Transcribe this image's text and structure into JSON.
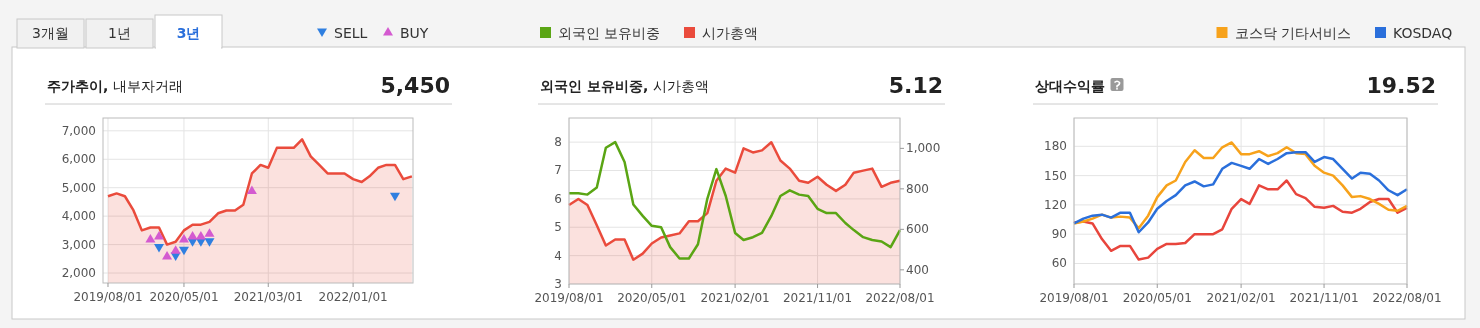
{
  "chart_data": [
    {
      "type": "area",
      "title": "주가추이, 내부자거래",
      "annotations": [
        "3개월",
        "1년",
        "3년",
        "5,450"
      ],
      "x": [
        "2019-08",
        "2019-09",
        "2019-10",
        "2019-11",
        "2019-12",
        "2020-01",
        "2020-02",
        "2020-03",
        "2020-04",
        "2020-05",
        "2020-06",
        "2020-07",
        "2020-08",
        "2020-09",
        "2020-10",
        "2020-11",
        "2020-12",
        "2021-01",
        "2021-02",
        "2021-03",
        "2021-04",
        "2021-05",
        "2021-06",
        "2021-07",
        "2021-08",
        "2021-09",
        "2021-10",
        "2021-11",
        "2021-12",
        "2022-01",
        "2022-02",
        "2022-03",
        "2022-04",
        "2022-05",
        "2022-06",
        "2022-07",
        "2022-08"
      ],
      "series": [
        {
          "color": "#ea4b3c",
          "values": [
            4700,
            4800,
            4700,
            4200,
            3500,
            3600,
            3600,
            3000,
            3100,
            3500,
            3700,
            3700,
            3800,
            4100,
            4200,
            4200,
            4400,
            5500,
            5800,
            5700,
            6400,
            6400,
            6400,
            6700,
            6100,
            5800,
            5500,
            5500,
            5500,
            5300,
            5200,
            5400,
            5700,
            5800,
            5800,
            5300,
            5400
          ]
        },
        {
          "type": "scatter",
          "name": "SELL",
          "color": "#2f7fe0",
          "marker": "triangle-down",
          "x": [
            "2020-02",
            "2020-04",
            "2020-05",
            "2020-06",
            "2020-07",
            "2020-08",
            "2022-06"
          ],
          "values": [
            2900,
            2600,
            2800,
            3100,
            3100,
            3100,
            4700
          ]
        },
        {
          "type": "scatter",
          "name": "BUY",
          "color": "#d45ad0",
          "marker": "triangle",
          "x": [
            "2020-01",
            "2020-02",
            "2020-03",
            "2020-04",
            "2020-05",
            "2020-06",
            "2020-07",
            "2020-08",
            "2021-01"
          ],
          "values": [
            3200,
            3300,
            2600,
            2800,
            3200,
            3300,
            3300,
            3400,
            4900
          ]
        }
      ],
      "xlim": [
        "2019-07-14",
        "2022-08-05"
      ],
      "xticks": [
        {
          "value": "2019-08-01",
          "label": "2019/08/01"
        },
        {
          "value": "2020-05-01",
          "label": "2020/05/01"
        },
        {
          "value": "2021-03-01",
          "label": "2021/03/01"
        },
        {
          "value": "2022-01-01",
          "label": "2022/01/01"
        }
      ],
      "ylim": [
        1650,
        7450
      ],
      "yticks": [
        {
          "value": 2000,
          "label": "2,000"
        },
        {
          "value": 3000,
          "label": "3,000"
        },
        {
          "value": 4000,
          "label": "4,000"
        },
        {
          "value": 5000,
          "label": "5,000"
        },
        {
          "value": 6000,
          "label": "6,000"
        },
        {
          "value": 7000,
          "label": "7,000"
        }
      ],
      "grid": true,
      "legend": "top"
    },
    {
      "type": "line",
      "title": "외국인 보유비중, 시가총액",
      "annotations": [
        "5.12"
      ],
      "x": [
        "2019-08",
        "2019-09",
        "2019-10",
        "2019-11",
        "2019-12",
        "2020-01",
        "2020-02",
        "2020-03",
        "2020-04",
        "2020-05",
        "2020-06",
        "2020-07",
        "2020-08",
        "2020-09",
        "2020-10",
        "2020-11",
        "2020-12",
        "2021-01",
        "2021-02",
        "2021-03",
        "2021-04",
        "2021-05",
        "2021-06",
        "2021-07",
        "2021-08",
        "2021-09",
        "2021-10",
        "2021-11",
        "2021-12",
        "2022-01",
        "2022-02",
        "2022-03",
        "2022-04",
        "2022-05",
        "2022-06",
        "2022-07",
        "2022-08"
      ],
      "series": [
        {
          "name": "외국인 보유비중",
          "color": "#5aa514",
          "values": [
            6.2,
            6.2,
            6.15,
            6.4,
            7.8,
            8.0,
            7.3,
            5.8,
            5.4,
            5.05,
            5.0,
            4.3,
            3.9,
            3.9,
            4.4,
            6.0,
            7.05,
            6.1,
            4.8,
            4.55,
            4.65,
            4.8,
            5.4,
            6.1,
            6.3,
            6.15,
            6.1,
            5.65,
            5.5,
            5.5,
            5.15,
            4.9,
            4.65,
            4.55,
            4.5,
            4.3,
            4.9
          ]
        },
        {
          "type": "area",
          "name": "시가총액",
          "color": "#ea4b3c",
          "axis": "y2",
          "values": [
            720,
            750,
            720,
            620,
            520,
            550,
            550,
            450,
            480,
            530,
            560,
            570,
            580,
            640,
            640,
            680,
            840,
            900,
            880,
            1000,
            980,
            990,
            1030,
            940,
            900,
            840,
            830,
            860,
            820,
            790,
            820,
            880,
            890,
            900,
            810,
            830,
            840
          ]
        }
      ],
      "xlim": [
        "2019-08-01",
        "2022-08-01"
      ],
      "xticks": [
        {
          "value": "2019-08-01",
          "label": "2019/08/01"
        },
        {
          "value": "2020-05-01",
          "label": "2020/05/01"
        },
        {
          "value": "2021-02-01",
          "label": "2021/02/01"
        },
        {
          "value": "2021-11-01",
          "label": "2021/11/01"
        },
        {
          "value": "2022-08-01",
          "label": "2022/08/01"
        }
      ],
      "ylim": [
        3,
        8.85
      ],
      "yticks": [
        3,
        4,
        5,
        6,
        7,
        8
      ],
      "y2lim": [
        330,
        1150
      ],
      "y2ticks": [
        400,
        600,
        800,
        {
          "value": 1000,
          "label": "1,000"
        }
      ],
      "grid": true,
      "legend": "top"
    },
    {
      "type": "line",
      "title": "상대수익률",
      "annotations": [
        "19.52"
      ],
      "x": [
        "2019-08",
        "2019-09",
        "2019-10",
        "2019-11",
        "2019-12",
        "2020-01",
        "2020-02",
        "2020-03",
        "2020-04",
        "2020-05",
        "2020-06",
        "2020-07",
        "2020-08",
        "2020-09",
        "2020-10",
        "2020-11",
        "2020-12",
        "2021-01",
        "2021-02",
        "2021-03",
        "2021-04",
        "2021-05",
        "2021-06",
        "2021-07",
        "2021-08",
        "2021-09",
        "2021-10",
        "2021-11",
        "2021-12",
        "2022-01",
        "2022-02",
        "2022-03",
        "2022-04",
        "2022-05",
        "2022-06",
        "2022-07",
        "2022-08"
      ],
      "series": [
        {
          "color": "#e8453c",
          "values": [
            102,
            103,
            101,
            85,
            73,
            78,
            78,
            64,
            66,
            75,
            80,
            80,
            81,
            90,
            90,
            90,
            95,
            116,
            126,
            121,
            140,
            136,
            136,
            145,
            131,
            127,
            118,
            117,
            119,
            113,
            112,
            116,
            123,
            126,
            126,
            112,
            117
          ]
        },
        {
          "name": "코스닥 기타서비스",
          "color": "#f7a21b",
          "values": [
            101,
            103,
            106,
            110,
            107,
            108,
            107,
            96,
            109,
            128,
            140,
            145,
            164,
            176,
            168,
            168,
            179,
            184,
            172,
            172,
            175,
            170,
            173,
            179,
            173,
            172,
            160,
            153,
            150,
            140,
            128,
            129,
            126,
            121,
            115,
            114,
            119
          ]
        },
        {
          "name": "KOSDAQ",
          "color": "#2a6fdb",
          "values": [
            101,
            106,
            109,
            110,
            107,
            112,
            112,
            92,
            102,
            116,
            124,
            130,
            140,
            144,
            139,
            141,
            157,
            163,
            160,
            157,
            167,
            162,
            167,
            173,
            174,
            174,
            164,
            169,
            167,
            157,
            147,
            153,
            152,
            145,
            135,
            130,
            136
          ]
        }
      ],
      "xlim": [
        "2019-08-01",
        "2022-08-01"
      ],
      "xticks": [
        {
          "value": "2019-08-01",
          "label": "2019/08/01"
        },
        {
          "value": "2020-05-01",
          "label": "2020/05/01"
        },
        {
          "value": "2021-02-01",
          "label": "2021/02/01"
        },
        {
          "value": "2021-11-01",
          "label": "2021/11/01"
        },
        {
          "value": "2022-08-01",
          "label": "2022/08/01"
        }
      ],
      "ylim": [
        39,
        209
      ],
      "yticks": [
        60,
        90,
        120,
        150,
        180
      ],
      "grid": true,
      "legend": "top right"
    }
  ]
}
